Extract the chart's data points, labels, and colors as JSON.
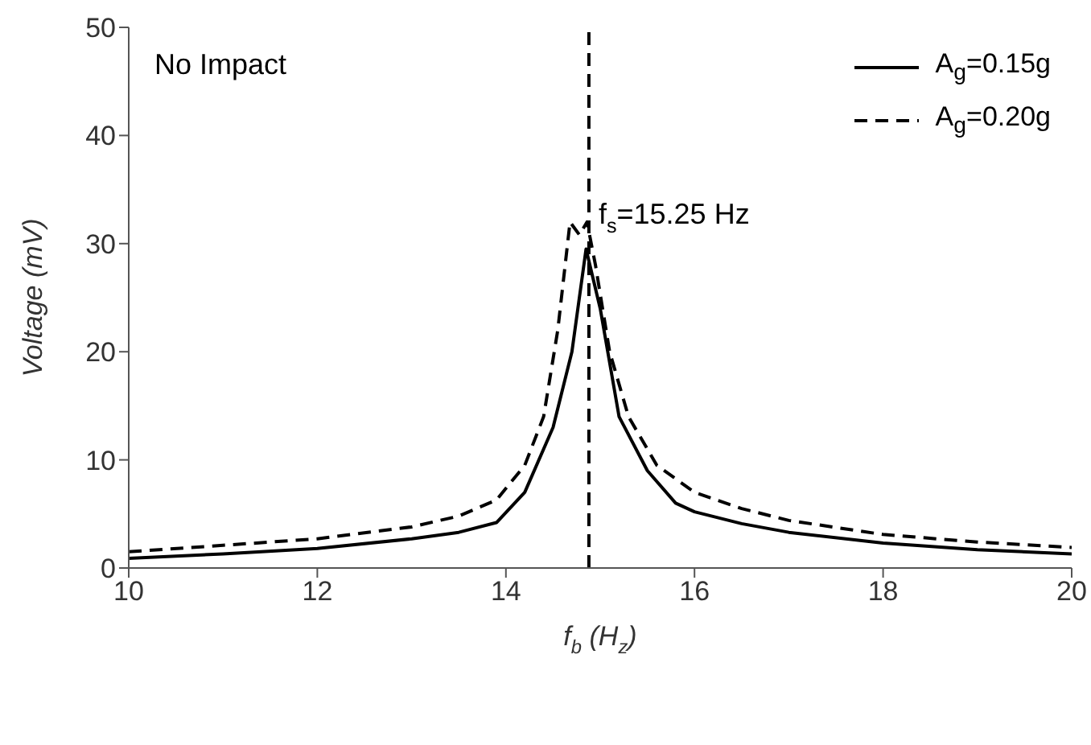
{
  "chart_data": {
    "type": "line",
    "xlabel": "f$_{b}$ (H$_{z}$)",
    "ylabel": "Voltage (mV)",
    "xlim": [
      10,
      20
    ],
    "ylim": [
      0,
      50
    ],
    "xticks": [
      10,
      12,
      14,
      16,
      18,
      20
    ],
    "yticks": [
      0,
      10,
      20,
      30,
      40,
      50
    ],
    "legend": "top right",
    "annotations": [
      "No Impact",
      {
        "text": "f$_{s}$=15.25 Hz",
        "x": 14.88,
        "y": 33
      }
    ],
    "ref_lines": [
      {
        "axis": "x",
        "value": 14.88,
        "line_style": "dashed",
        "color": "#000000"
      }
    ],
    "series": [
      {
        "name": "A$_{g}$=0.15g",
        "color": "#000000",
        "line_style": "solid",
        "x": [
          10,
          11,
          12,
          13,
          13.5,
          13.9,
          14.2,
          14.5,
          14.7,
          14.85,
          15.0,
          15.2,
          15.5,
          15.8,
          16,
          16.5,
          17,
          18,
          19,
          20
        ],
        "values": [
          0.9,
          1.3,
          1.8,
          2.7,
          3.3,
          4.2,
          7,
          13,
          20,
          29.5,
          24,
          14,
          9,
          6,
          5.2,
          4.1,
          3.3,
          2.3,
          1.7,
          1.3
        ]
      },
      {
        "name": "A$_{g}$=0.20g",
        "color": "#000000",
        "line_style": "dashed",
        "x": [
          10,
          11,
          12,
          13,
          13.5,
          13.9,
          14.2,
          14.4,
          14.55,
          14.68,
          14.78,
          14.86,
          14.95,
          15.1,
          15.3,
          15.6,
          16,
          16.5,
          17,
          18,
          19,
          20
        ],
        "values": [
          1.5,
          2.1,
          2.7,
          3.8,
          4.8,
          6.3,
          9.5,
          14,
          22,
          32,
          30.8,
          32,
          28,
          20,
          14,
          9.5,
          7,
          5.5,
          4.4,
          3.1,
          2.4,
          1.9
        ]
      }
    ]
  }
}
